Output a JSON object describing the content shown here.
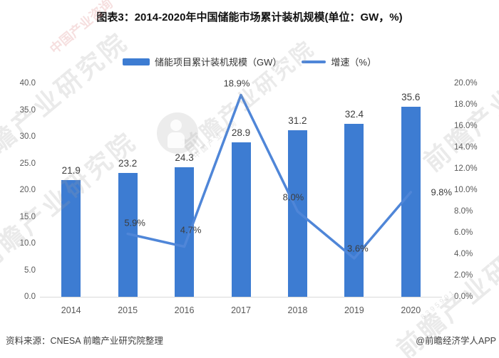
{
  "title": "图表3：2014-2020年中国储能市场累计装机规模(单位：GW，%)",
  "legend": {
    "bar_label": "储能项目累计装机规模（GW）",
    "line_label": "增速（%）"
  },
  "colors": {
    "bar": "#3d7cd2",
    "line": "#4f86d8",
    "axis_line": "#d9d9d9",
    "tick_text": "#595959",
    "data_label_text": "#3d3d3d"
  },
  "chart_data": {
    "type": "bar",
    "subtype": "bar+line combo",
    "categories": [
      "2014",
      "2015",
      "2016",
      "2017",
      "2018",
      "2019",
      "2020"
    ],
    "series": [
      {
        "name": "储能项目累计装机规模（GW）",
        "type": "bar",
        "axis": "left",
        "values": [
          21.9,
          23.2,
          24.3,
          28.9,
          31.2,
          32.4,
          35.6
        ],
        "labels": [
          "21.9",
          "23.2",
          "24.3",
          "28.9",
          "31.2",
          "32.4",
          "35.6"
        ]
      },
      {
        "name": "增速（%）",
        "type": "line",
        "axis": "right",
        "values": [
          null,
          5.9,
          4.7,
          18.9,
          8.0,
          3.6,
          9.8
        ],
        "labels": [
          null,
          "5.9%",
          "4.7%",
          "18.9%",
          "8.0%",
          "3.6%",
          "9.8%"
        ]
      }
    ],
    "left_axis": {
      "min": 0,
      "max": 40,
      "step": 5,
      "tick_labels": [
        "0.0",
        "5.0",
        "10.0",
        "15.0",
        "20.0",
        "25.0",
        "30.0",
        "35.0",
        "40.0"
      ]
    },
    "right_axis": {
      "min": 0,
      "max": 20,
      "step": 2,
      "tick_labels": [
        "0.0%",
        "2.0%",
        "4.0%",
        "6.0%",
        "8.0%",
        "10.0%",
        "12.0%",
        "14.0%",
        "16.0%",
        "18.0%",
        "20.0%"
      ]
    },
    "grid": false,
    "legend_position": "top"
  },
  "watermark": {
    "text": "前瞻产业研究院",
    "subtext": "中国产业咨询",
    "digits": "8395991"
  },
  "footer": {
    "source": "资料来源：CNESA 前瞻产业研究院整理",
    "credit": "@前瞻经济学人APP"
  }
}
